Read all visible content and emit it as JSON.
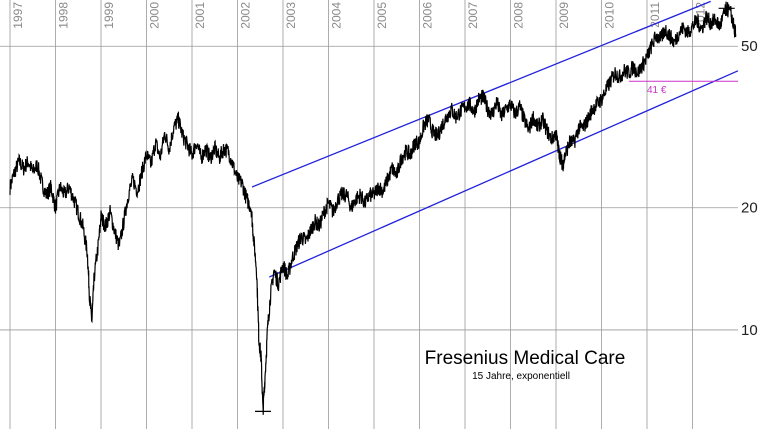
{
  "chart_data": {
    "type": "line",
    "title": "Fresenius Medical Care",
    "subtitle": "15 Jahre, exponentiell",
    "y_scale": "log",
    "ylim": [
      5.7,
      65
    ],
    "xlim": [
      1997.0,
      2013.0
    ],
    "y_ticks": [
      {
        "value": 50,
        "label": "50"
      },
      {
        "value": 20,
        "label": "20"
      },
      {
        "value": 10,
        "label": "10"
      }
    ],
    "x_year_labels": [
      "1997",
      "1998",
      "1999",
      "2000",
      "2001",
      "2002",
      "2003",
      "2004",
      "2005",
      "2006",
      "2007",
      "2008",
      "2009",
      "2010",
      "2011",
      "2012"
    ],
    "grid": true,
    "colors": {
      "price": "#000000",
      "channel": "#2222dd",
      "grid": "#999999",
      "annotation": "#cc33cc"
    },
    "series": [
      {
        "points": [
          [
            1997.0,
            22.5
          ],
          [
            1997.1,
            24.5
          ],
          [
            1997.2,
            26.0
          ],
          [
            1997.3,
            25.0
          ],
          [
            1997.4,
            26.0
          ],
          [
            1997.5,
            24.5
          ],
          [
            1997.6,
            25.5
          ],
          [
            1997.7,
            23.0
          ],
          [
            1997.8,
            21.5
          ],
          [
            1997.9,
            22.5
          ],
          [
            1998.0,
            20.0
          ],
          [
            1998.1,
            22.5
          ],
          [
            1998.2,
            21.5
          ],
          [
            1998.3,
            22.5
          ],
          [
            1998.4,
            21.0
          ],
          [
            1998.5,
            19.5
          ],
          [
            1998.6,
            18.0
          ],
          [
            1998.7,
            15.5
          ],
          [
            1998.75,
            12.0
          ],
          [
            1998.8,
            10.5
          ],
          [
            1998.85,
            13.5
          ],
          [
            1998.95,
            16.5
          ],
          [
            1999.0,
            19.0
          ],
          [
            1999.1,
            18.0
          ],
          [
            1999.2,
            19.5
          ],
          [
            1999.3,
            17.5
          ],
          [
            1999.4,
            16.0
          ],
          [
            1999.5,
            18.5
          ],
          [
            1999.6,
            21.5
          ],
          [
            1999.7,
            23.5
          ],
          [
            1999.8,
            22.0
          ],
          [
            1999.9,
            24.5
          ],
          [
            2000.0,
            27.0
          ],
          [
            2000.1,
            25.5
          ],
          [
            2000.2,
            29.0
          ],
          [
            2000.3,
            26.5
          ],
          [
            2000.4,
            30.5
          ],
          [
            2000.5,
            28.0
          ],
          [
            2000.6,
            31.5
          ],
          [
            2000.7,
            33.0
          ],
          [
            2000.8,
            30.0
          ],
          [
            2000.9,
            28.5
          ],
          [
            2001.0,
            27.0
          ],
          [
            2001.1,
            29.0
          ],
          [
            2001.2,
            26.5
          ],
          [
            2001.3,
            28.0
          ],
          [
            2001.4,
            26.5
          ],
          [
            2001.5,
            28.0
          ],
          [
            2001.6,
            26.5
          ],
          [
            2001.7,
            28.0
          ],
          [
            2001.8,
            27.5
          ],
          [
            2001.9,
            25.5
          ],
          [
            2002.0,
            23.5
          ],
          [
            2002.1,
            23.0
          ],
          [
            2002.2,
            21.0
          ],
          [
            2002.3,
            20.0
          ],
          [
            2002.35,
            17.0
          ],
          [
            2002.42,
            14.0
          ],
          [
            2002.47,
            9.5
          ],
          [
            2002.52,
            8.5
          ],
          [
            2002.56,
            6.3
          ],
          [
            2002.6,
            7.5
          ],
          [
            2002.66,
            10.0
          ],
          [
            2002.72,
            12.0
          ],
          [
            2002.8,
            14.0
          ],
          [
            2002.9,
            13.0
          ],
          [
            2003.0,
            14.5
          ],
          [
            2003.1,
            13.5
          ],
          [
            2003.2,
            15.0
          ],
          [
            2003.3,
            16.0
          ],
          [
            2003.4,
            17.0
          ],
          [
            2003.5,
            16.5
          ],
          [
            2003.6,
            17.5
          ],
          [
            2003.7,
            18.5
          ],
          [
            2003.8,
            18.0
          ],
          [
            2003.9,
            19.5
          ],
          [
            2004.0,
            20.5
          ],
          [
            2004.1,
            19.5
          ],
          [
            2004.2,
            21.0
          ],
          [
            2004.3,
            21.5
          ],
          [
            2004.4,
            21.5
          ],
          [
            2004.5,
            20.0
          ],
          [
            2004.6,
            21.0
          ],
          [
            2004.7,
            21.5
          ],
          [
            2004.8,
            20.5
          ],
          [
            2004.9,
            21.5
          ],
          [
            2005.0,
            21.5
          ],
          [
            2005.1,
            22.5
          ],
          [
            2005.2,
            22.0
          ],
          [
            2005.3,
            23.5
          ],
          [
            2005.4,
            25.0
          ],
          [
            2005.5,
            24.0
          ],
          [
            2005.6,
            26.5
          ],
          [
            2005.7,
            27.5
          ],
          [
            2005.8,
            27.0
          ],
          [
            2005.9,
            29.0
          ],
          [
            2006.0,
            29.0
          ],
          [
            2006.1,
            32.0
          ],
          [
            2006.2,
            33.0
          ],
          [
            2006.3,
            30.5
          ],
          [
            2006.4,
            30.0
          ],
          [
            2006.5,
            32.0
          ],
          [
            2006.6,
            33.5
          ],
          [
            2006.7,
            35.0
          ],
          [
            2006.8,
            33.5
          ],
          [
            2006.9,
            34.5
          ],
          [
            2007.0,
            35.5
          ],
          [
            2007.1,
            36.0
          ],
          [
            2007.2,
            34.5
          ],
          [
            2007.3,
            37.0
          ],
          [
            2007.4,
            37.5
          ],
          [
            2007.5,
            35.0
          ],
          [
            2007.6,
            34.0
          ],
          [
            2007.7,
            36.5
          ],
          [
            2007.8,
            33.5
          ],
          [
            2007.9,
            35.0
          ],
          [
            2008.0,
            36.0
          ],
          [
            2008.1,
            34.0
          ],
          [
            2008.2,
            35.5
          ],
          [
            2008.3,
            33.0
          ],
          [
            2008.4,
            31.0
          ],
          [
            2008.5,
            33.5
          ],
          [
            2008.6,
            31.5
          ],
          [
            2008.7,
            33.0
          ],
          [
            2008.8,
            31.0
          ],
          [
            2008.9,
            29.5
          ],
          [
            2009.0,
            30.5
          ],
          [
            2009.05,
            28.0
          ],
          [
            2009.1,
            26.5
          ],
          [
            2009.15,
            25.5
          ],
          [
            2009.2,
            27.0
          ],
          [
            2009.3,
            29.0
          ],
          [
            2009.4,
            29.0
          ],
          [
            2009.5,
            31.5
          ],
          [
            2009.6,
            31.5
          ],
          [
            2009.7,
            33.0
          ],
          [
            2009.8,
            35.0
          ],
          [
            2009.9,
            36.0
          ],
          [
            2010.0,
            37.0
          ],
          [
            2010.1,
            39.0
          ],
          [
            2010.2,
            41.0
          ],
          [
            2010.3,
            43.0
          ],
          [
            2010.4,
            42.0
          ],
          [
            2010.5,
            43.5
          ],
          [
            2010.6,
            43.0
          ],
          [
            2010.7,
            44.5
          ],
          [
            2010.8,
            43.0
          ],
          [
            2010.9,
            45.0
          ],
          [
            2011.0,
            47.0
          ],
          [
            2011.1,
            50.0
          ],
          [
            2011.2,
            53.0
          ],
          [
            2011.3,
            52.0
          ],
          [
            2011.4,
            55.0
          ],
          [
            2011.5,
            53.0
          ],
          [
            2011.6,
            51.0
          ],
          [
            2011.7,
            54.0
          ],
          [
            2011.8,
            55.5
          ],
          [
            2011.9,
            54.0
          ],
          [
            2012.0,
            56.0
          ],
          [
            2012.1,
            58.0
          ],
          [
            2012.2,
            55.0
          ],
          [
            2012.3,
            59.0
          ],
          [
            2012.4,
            57.0
          ],
          [
            2012.5,
            58.0
          ],
          [
            2012.6,
            56.0
          ],
          [
            2012.7,
            60.0
          ],
          [
            2012.75,
            62.0
          ],
          [
            2012.85,
            60.0
          ],
          [
            2012.92,
            55.0
          ],
          [
            2012.95,
            53.5
          ]
        ]
      }
    ],
    "channel_lines": [
      {
        "from": [
          2002.32,
          22.5
        ],
        "to": [
          2012.4,
          64.5
        ]
      },
      {
        "from": [
          2002.7,
          13.5
        ],
        "to": [
          2013.0,
          43.5
        ]
      }
    ],
    "annotations": [
      {
        "text": "41 €",
        "level": 41,
        "x_from": 2010.6,
        "x_to": 2013.0,
        "label_x": 2011.0
      },
      {
        "type": "low-marker",
        "x": 2002.56,
        "value": 6.3
      },
      {
        "type": "high-marker",
        "x": 2012.75,
        "value": 62.0
      }
    ]
  }
}
